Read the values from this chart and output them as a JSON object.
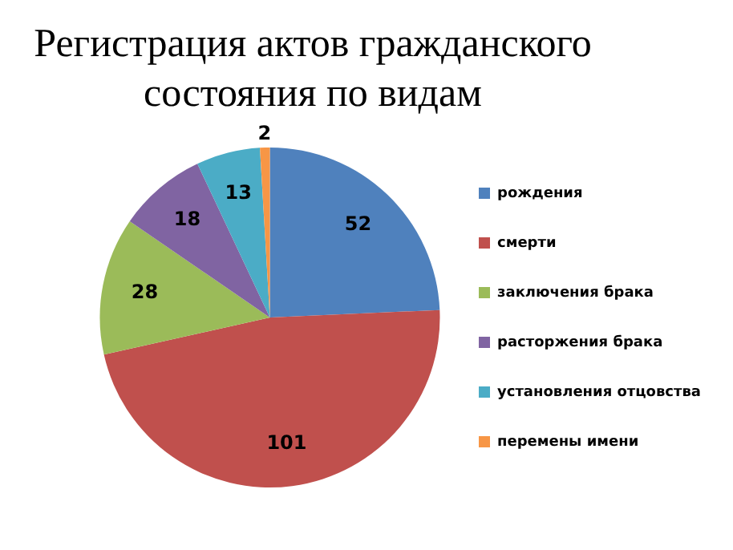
{
  "chart_data": {
    "type": "pie",
    "title": "Регистрация актов гражданского состояния по видам",
    "categories": [
      "рождения",
      "смерти",
      "заключения брака",
      "расторжения брака",
      "установления отцовства",
      "перемены имени"
    ],
    "values": [
      52,
      101,
      28,
      18,
      13,
      2
    ],
    "colors": [
      "#4f81bd",
      "#c0504d",
      "#9bbb59",
      "#8064a2",
      "#4bacc6",
      "#f79646"
    ],
    "data_labels": true,
    "legend": "right"
  }
}
